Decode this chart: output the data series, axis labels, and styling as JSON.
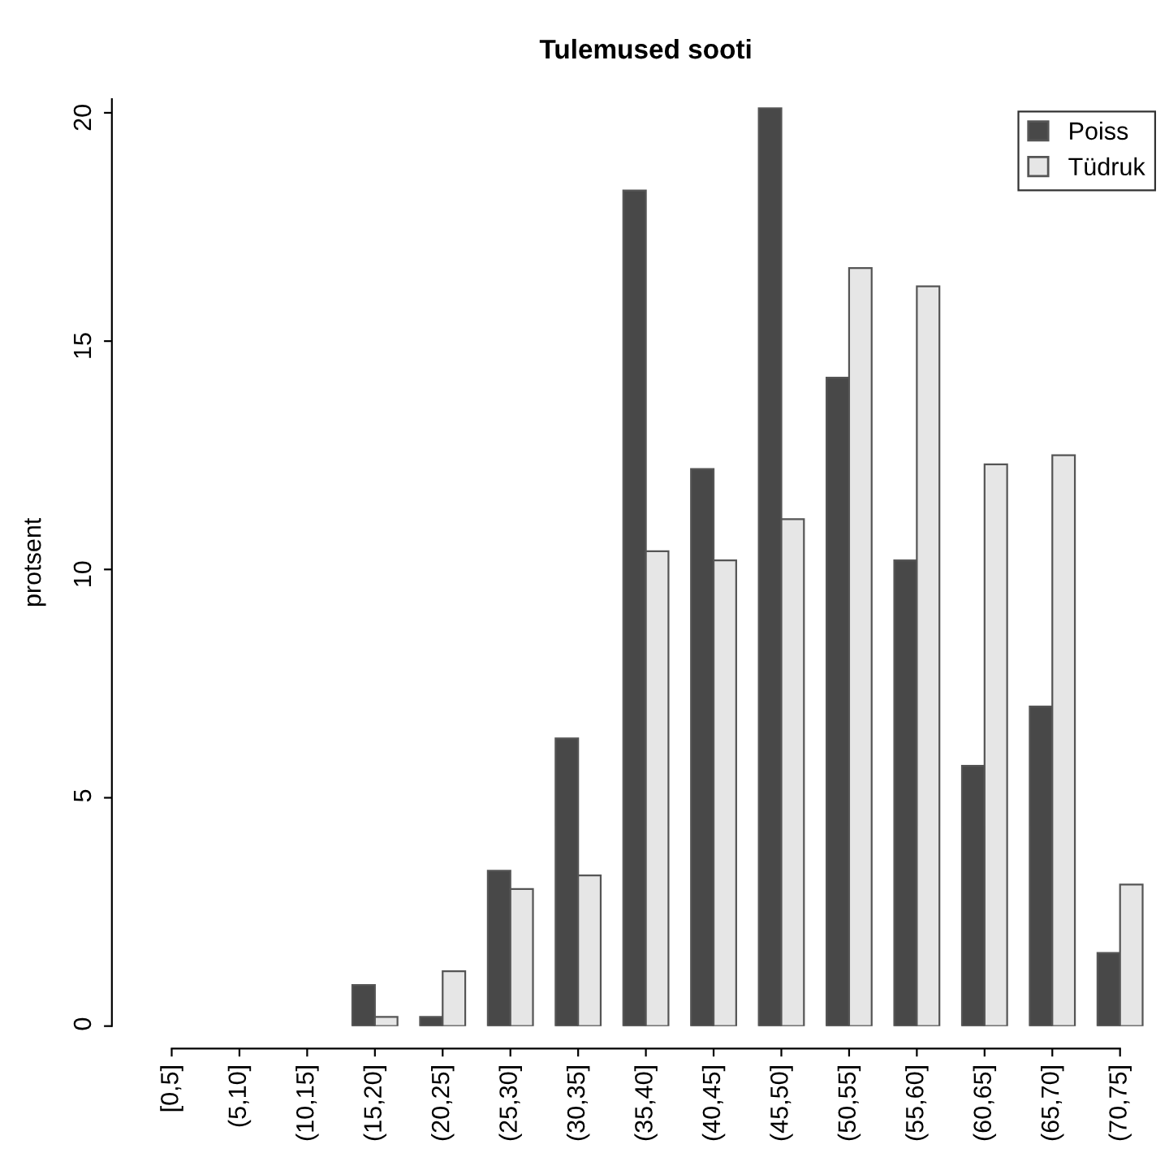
{
  "chart_data": {
    "type": "bar",
    "title": "Tulemused sooti",
    "ylabel": "protsent",
    "categories": [
      "[0,5]",
      "(5,10]",
      "(10,15]",
      "(15,20]",
      "(20,25]",
      "(25,30]",
      "(30,35]",
      "(35,40]",
      "(40,45]",
      "(45,50]",
      "(50,55]",
      "(55,60]",
      "(60,65]",
      "(65,70]",
      "(70,75]"
    ],
    "series": [
      {
        "name": "Poiss",
        "color": "#484848",
        "values": [
          0,
          0,
          0,
          0.9,
          0.2,
          3.4,
          6.3,
          18.3,
          12.2,
          20.1,
          14.2,
          10.2,
          5.7,
          7.0,
          1.6
        ]
      },
      {
        "name": "Tüdruk",
        "color": "#e6e6e6",
        "values": [
          0,
          0,
          0,
          0.2,
          1.2,
          3.0,
          3.3,
          10.4,
          10.2,
          11.1,
          16.6,
          16.2,
          12.3,
          12.5,
          3.1
        ]
      }
    ],
    "ylim": [
      0,
      20.3
    ],
    "yticks": [
      0,
      5,
      10,
      15,
      20
    ],
    "legend": "top right",
    "grid": false
  }
}
